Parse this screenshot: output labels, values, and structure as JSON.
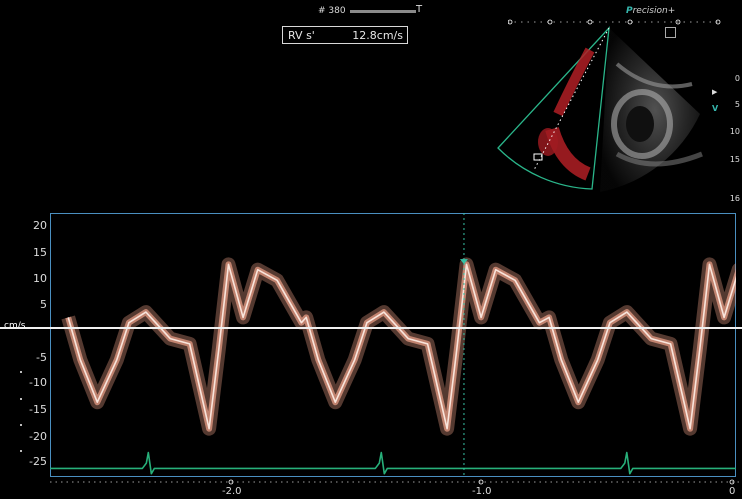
{
  "header": {
    "frame_label": "# 380",
    "frame_end_marker": "T",
    "brand_prefix": "P",
    "brand_rest": "recision",
    "brand_suffix": "+"
  },
  "measurement": {
    "label": "RV s'",
    "value": "12.8cm/s"
  },
  "depth_scale": {
    "ticks": [
      "0",
      "5",
      "10",
      "15"
    ],
    "extra": "16",
    "focus_marker": "▶",
    "vertex_marker": "V"
  },
  "doppler": {
    "unit": "cm/s",
    "y_ticks": [
      "20",
      "15",
      "10",
      "5",
      "-5",
      "-10",
      "-15",
      "-20",
      "-25"
    ],
    "time_ticks": [
      "-2.0",
      "-1.0",
      "0"
    ],
    "colors": {
      "spectrum": "#f0a28a",
      "spectrum_bright": "#fff0e8",
      "ecg": "#27b07a",
      "frame_border": "#4a8fc0",
      "cursor": "#36c2a5",
      "color_flow": "#b01e24",
      "sector_outline": "#2ab58a"
    },
    "cursor_time": -1.07
  }
}
